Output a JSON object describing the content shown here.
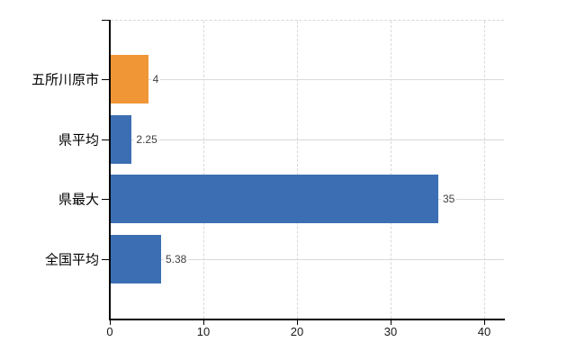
{
  "chart_data": {
    "type": "bar",
    "orientation": "horizontal",
    "title": "",
    "xlabel": "",
    "ylabel": "",
    "categories": [
      "五所川原市",
      "県平均",
      "県最大",
      "全国平均"
    ],
    "values": [
      4,
      2.25,
      35,
      5.38
    ],
    "value_labels": [
      "4",
      "2.25",
      "35",
      "5.38"
    ],
    "bar_colors": [
      "#f09637",
      "#3c6eb4",
      "#3c6eb4",
      "#3c6eb4"
    ],
    "xlim": [
      0,
      42
    ],
    "xticks": [
      0,
      10,
      20,
      30,
      40
    ],
    "xtick_labels": [
      "0",
      "10",
      "20",
      "30",
      "40"
    ],
    "grid": true,
    "legend": "none",
    "colors": {
      "axis": "#000000",
      "gridline": "#d9d9d9",
      "value_label": "#404040",
      "tick_label": "#1a1a1a",
      "category_label": "#000000",
      "background": "#ffffff"
    }
  }
}
